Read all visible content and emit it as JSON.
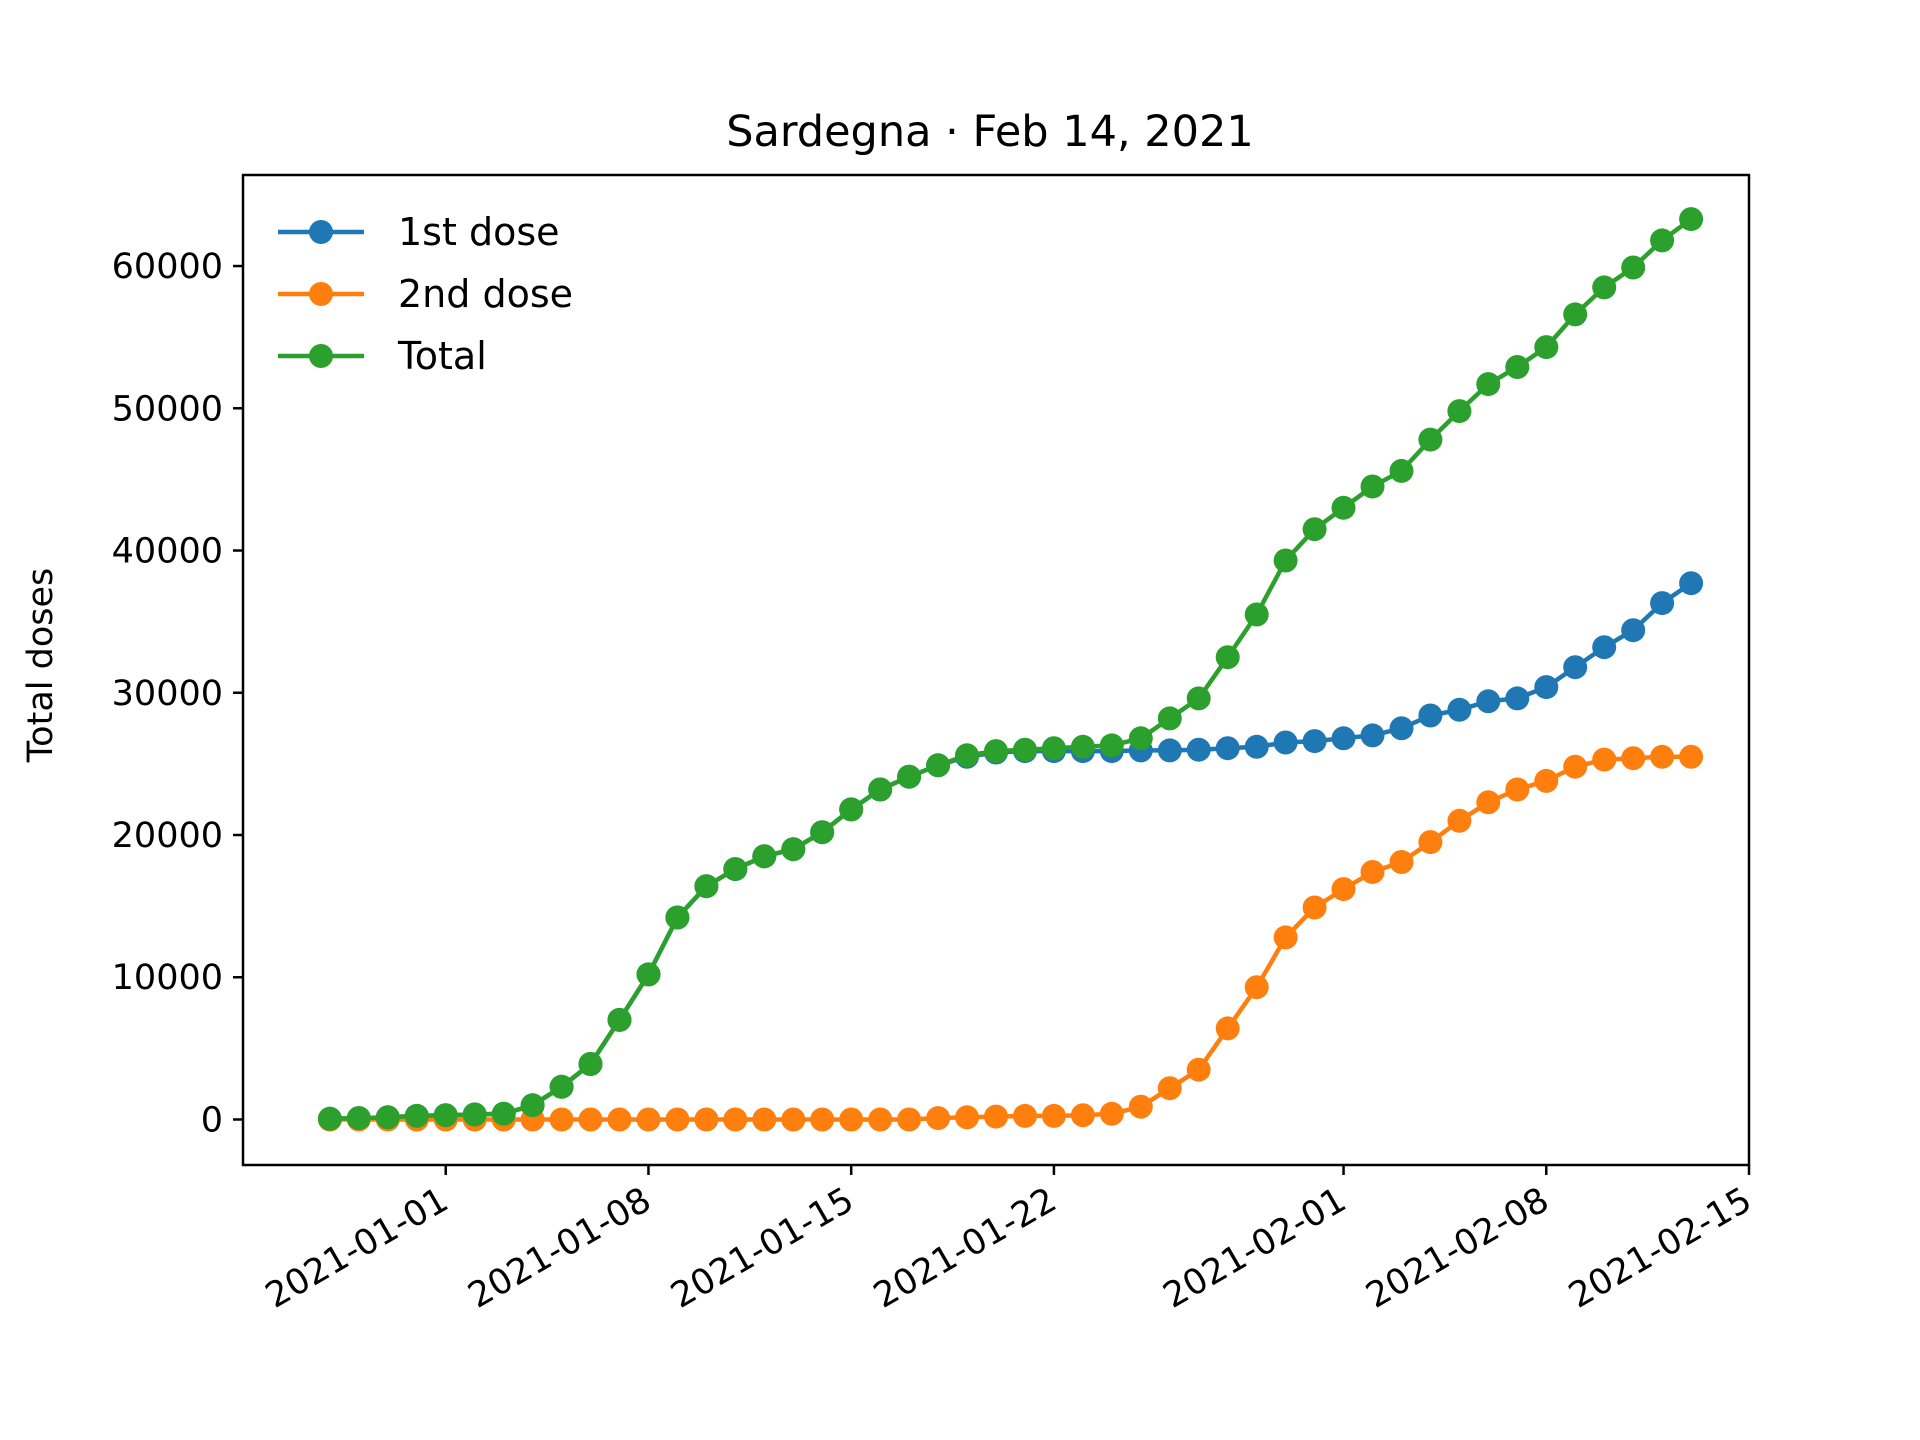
{
  "chart_data": {
    "type": "line",
    "title": "Sardegna · Feb 14, 2021",
    "xlabel": "",
    "ylabel": "Total doses",
    "x": [
      "2020-12-28",
      "2020-12-29",
      "2020-12-30",
      "2020-12-31",
      "2021-01-01",
      "2021-01-02",
      "2021-01-03",
      "2021-01-04",
      "2021-01-05",
      "2021-01-06",
      "2021-01-07",
      "2021-01-08",
      "2021-01-09",
      "2021-01-10",
      "2021-01-11",
      "2021-01-12",
      "2021-01-13",
      "2021-01-14",
      "2021-01-15",
      "2021-01-16",
      "2021-01-17",
      "2021-01-18",
      "2021-01-19",
      "2021-01-20",
      "2021-01-21",
      "2021-01-22",
      "2021-01-23",
      "2021-01-24",
      "2021-01-25",
      "2021-01-26",
      "2021-01-27",
      "2021-01-28",
      "2021-01-29",
      "2021-01-30",
      "2021-01-31",
      "2021-02-01",
      "2021-02-02",
      "2021-02-03",
      "2021-02-04",
      "2021-02-05",
      "2021-02-06",
      "2021-02-07",
      "2021-02-08",
      "2021-02-09",
      "2021-02-10",
      "2021-02-11",
      "2021-02-12",
      "2021-02-13"
    ],
    "series": [
      {
        "name": "1st dose",
        "color": "#1f77b4",
        "values": [
          50,
          100,
          150,
          250,
          300,
          350,
          400,
          1000,
          2300,
          3900,
          7000,
          10200,
          14200,
          16400,
          17600,
          18500,
          19000,
          20200,
          21800,
          23200,
          24100,
          24900,
          25500,
          25800,
          25900,
          25900,
          25900,
          25900,
          25950,
          25950,
          26000,
          26100,
          26200,
          26500,
          26600,
          26800,
          27000,
          27500,
          28400,
          28800,
          29400,
          29600,
          30400,
          31800,
          33200,
          34400,
          36300,
          37700
        ]
      },
      {
        "name": "2nd dose",
        "color": "#ff7f0e",
        "values": [
          0,
          0,
          0,
          0,
          0,
          0,
          0,
          0,
          0,
          0,
          0,
          0,
          0,
          0,
          0,
          0,
          0,
          0,
          0,
          0,
          0,
          100,
          150,
          200,
          250,
          250,
          300,
          400,
          900,
          2200,
          3500,
          6400,
          9300,
          12800,
          14900,
          16200,
          17400,
          18100,
          19500,
          21000,
          22300,
          23200,
          23800,
          24800,
          25300,
          25400,
          25500,
          25500
        ]
      },
      {
        "name": "Total",
        "color": "#2ca02c",
        "values": [
          50,
          100,
          150,
          250,
          300,
          350,
          400,
          1000,
          2300,
          3900,
          7000,
          10200,
          14200,
          16400,
          17600,
          18500,
          19000,
          20200,
          21800,
          23200,
          24100,
          24900,
          25600,
          25900,
          26000,
          26100,
          26200,
          26300,
          26800,
          28200,
          29600,
          32500,
          35500,
          39300,
          41500,
          43000,
          44500,
          45600,
          47800,
          49800,
          51700,
          52900,
          54300,
          56600,
          58500,
          59900,
          61800,
          63300
        ]
      }
    ],
    "x_ticks": [
      "2021-01-01",
      "2021-01-08",
      "2021-01-15",
      "2021-01-22",
      "2021-02-01",
      "2021-02-08",
      "2021-02-15"
    ],
    "y_ticks": [
      0,
      10000,
      20000,
      30000,
      40000,
      50000,
      60000
    ],
    "ylim": [
      -3200,
      66400
    ],
    "xlim": [
      "2020-12-25",
      "2021-02-15"
    ],
    "grid": false,
    "legend": "top-left"
  }
}
